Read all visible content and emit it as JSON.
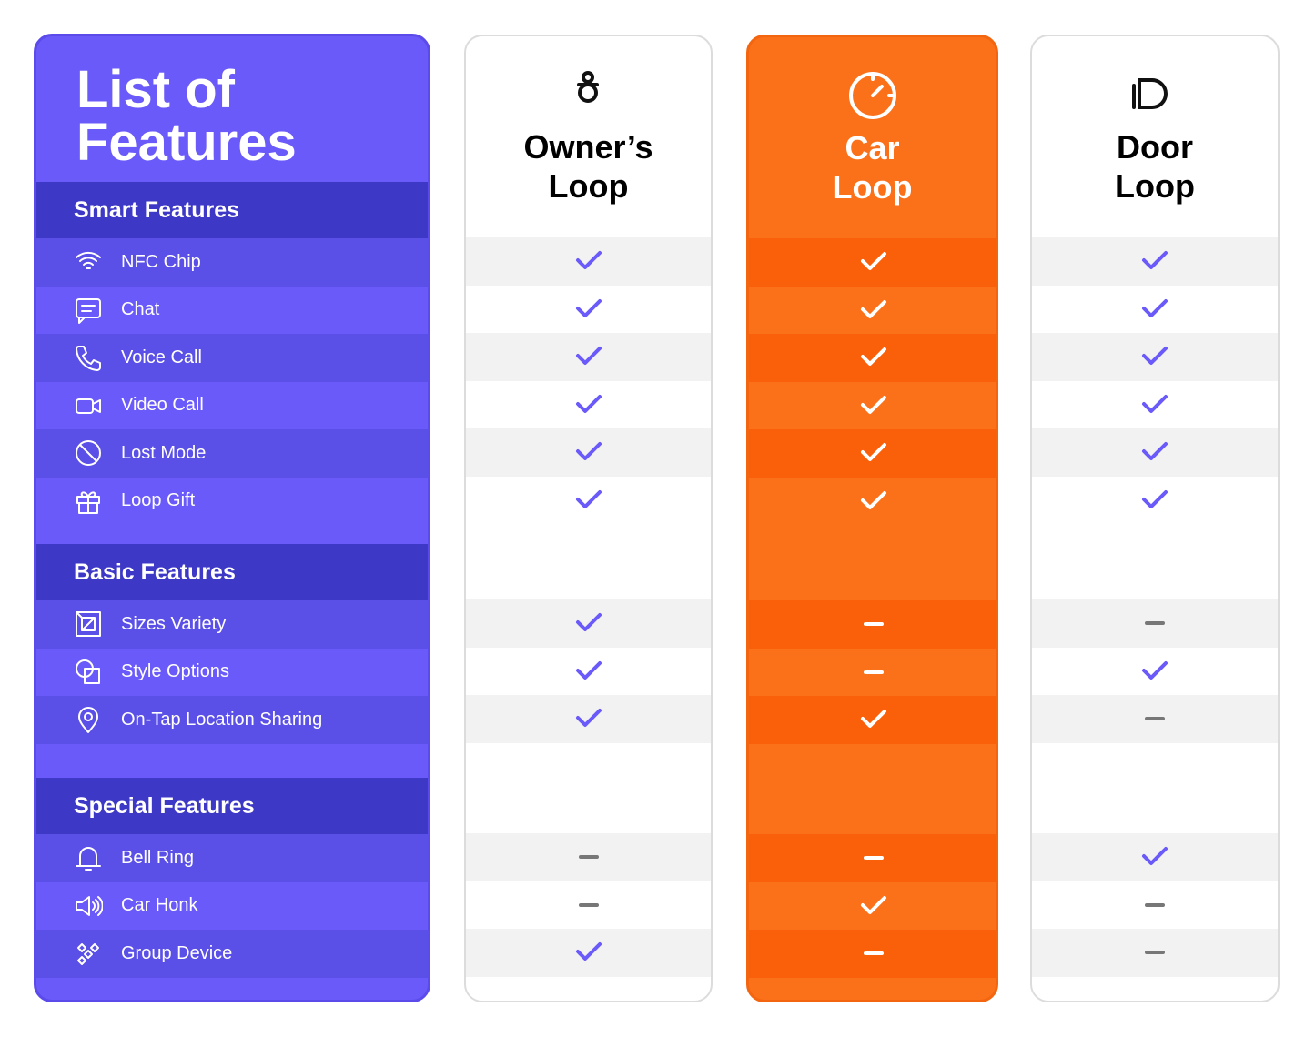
{
  "title": "List of Features",
  "columns": [
    "Owner’s Loop",
    "Car Loop",
    "Door Loop"
  ],
  "sections": [
    {
      "name": "Smart Features",
      "features": [
        {
          "name": "NFC Chip",
          "available": [
            true,
            true,
            true
          ]
        },
        {
          "name": "Chat",
          "available": [
            true,
            true,
            true
          ]
        },
        {
          "name": "Voice Call",
          "available": [
            true,
            true,
            true
          ]
        },
        {
          "name": "Video Call",
          "available": [
            true,
            true,
            true
          ]
        },
        {
          "name": "Lost Mode",
          "available": [
            true,
            true,
            true
          ]
        },
        {
          "name": "Loop Gift",
          "available": [
            true,
            true,
            true
          ]
        }
      ]
    },
    {
      "name": "Basic Features",
      "features": [
        {
          "name": "Sizes Variety",
          "available": [
            true,
            false,
            false
          ]
        },
        {
          "name": "Style Options",
          "available": [
            true,
            false,
            true
          ]
        },
        {
          "name": "On-Tap Location Sharing",
          "available": [
            true,
            true,
            false
          ]
        }
      ]
    },
    {
      "name": "Special Features",
      "features": [
        {
          "name": "Bell Ring",
          "available": [
            false,
            false,
            true
          ]
        },
        {
          "name": "Car Honk",
          "available": [
            false,
            true,
            false
          ]
        },
        {
          "name": "Group Device",
          "available": [
            true,
            false,
            false
          ]
        }
      ]
    }
  ]
}
